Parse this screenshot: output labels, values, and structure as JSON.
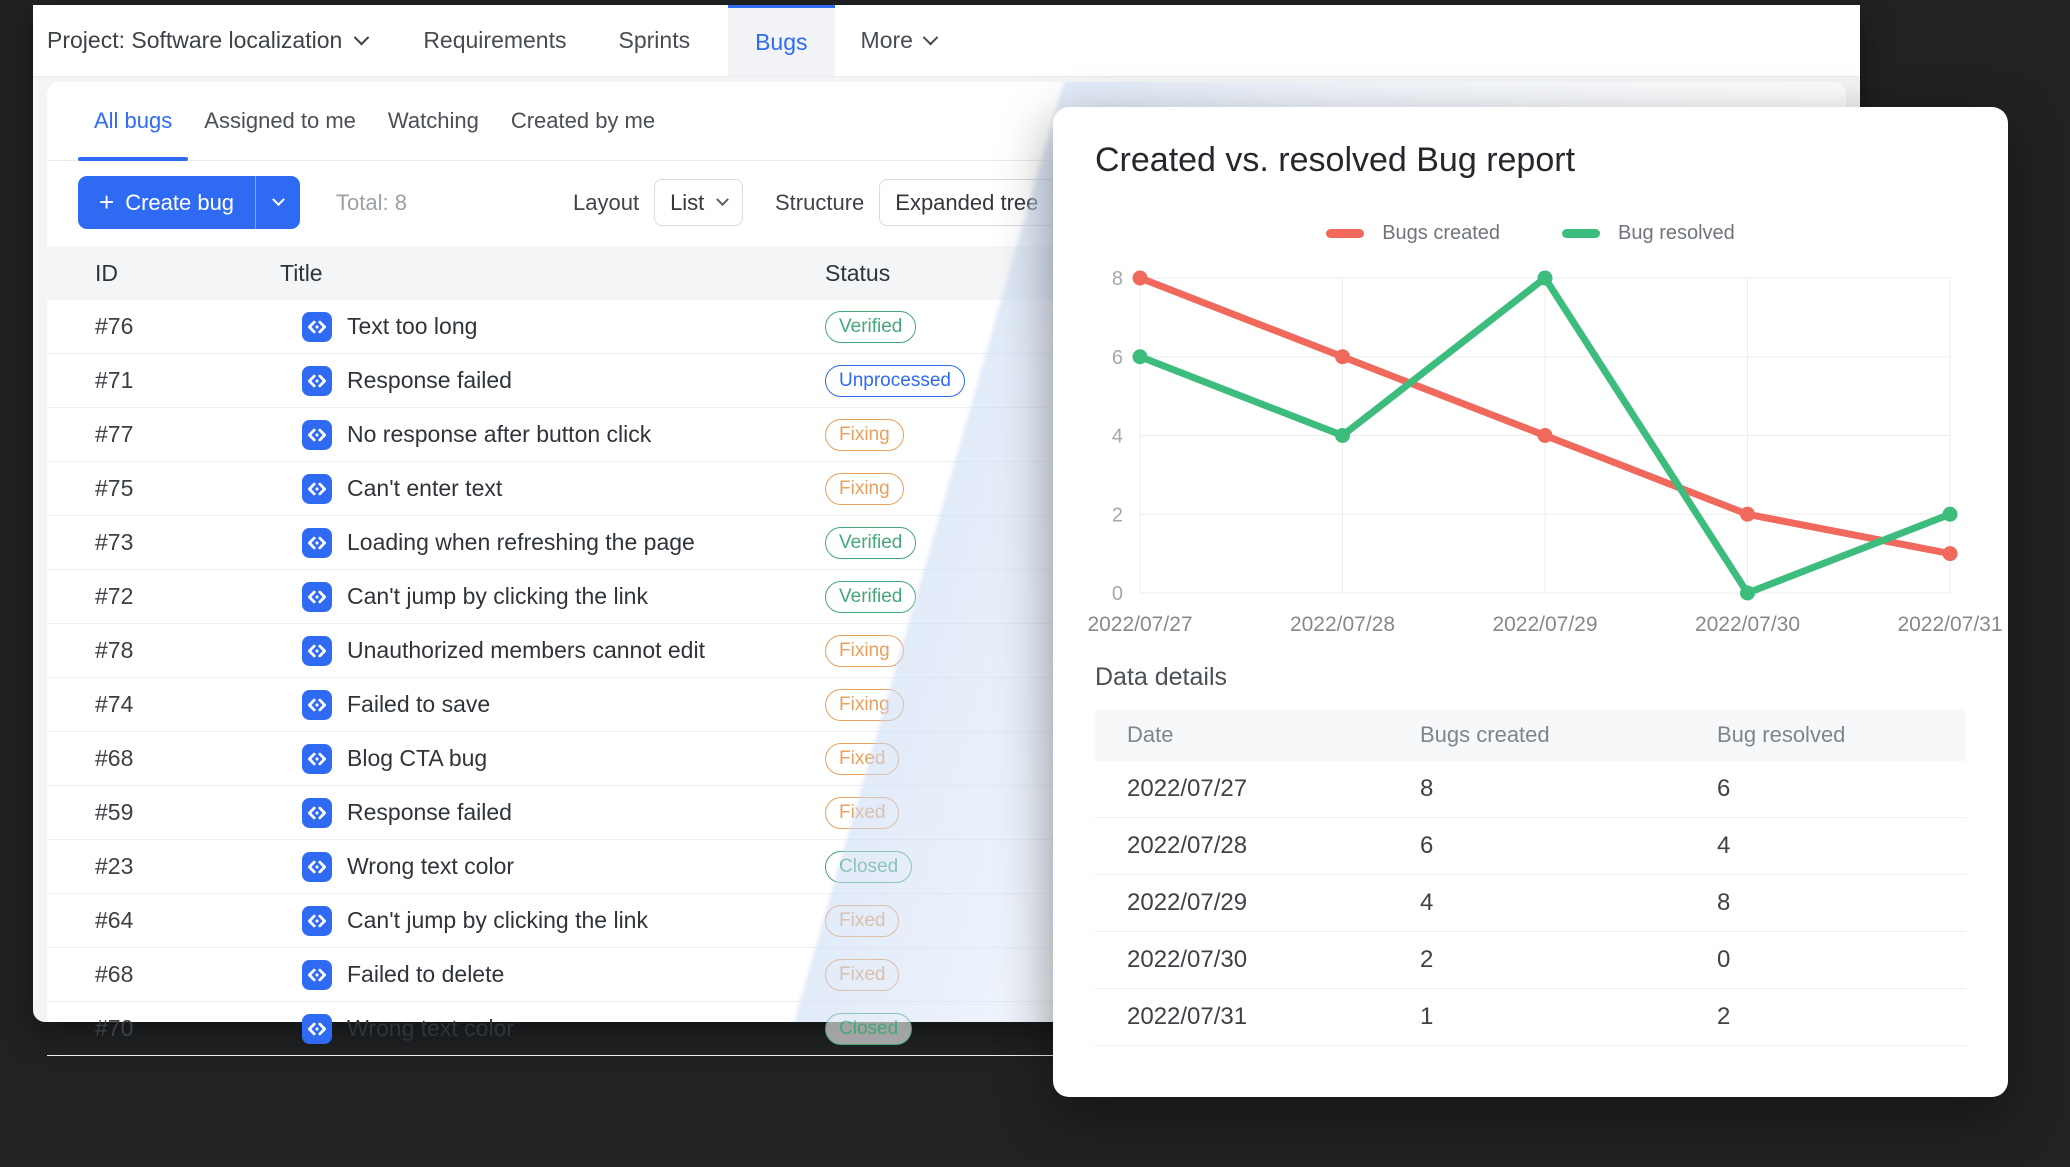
{
  "colors": {
    "accent_blue": "#2e6bf2",
    "line_red": "#f0695c",
    "line_green": "#3dbd7d",
    "pill_green": "#45a878",
    "pill_blue": "#2e6bf2",
    "pill_orange": "#e9a05c",
    "grid": "#ededee"
  },
  "top_nav": {
    "project_label": "Project: Software localization",
    "tabs": [
      {
        "label": "Requirements",
        "active": false
      },
      {
        "label": "Sprints",
        "active": false
      },
      {
        "label": "Bugs",
        "active": true
      }
    ],
    "more_label": "More"
  },
  "bugs_panel": {
    "tabs": [
      {
        "label": "All bugs",
        "active": true
      },
      {
        "label": "Assigned to me",
        "active": false
      },
      {
        "label": "Watching",
        "active": false
      },
      {
        "label": "Created by me",
        "active": false
      }
    ],
    "toolbar": {
      "create_button": "Create bug",
      "total_label": "Total: 8",
      "layout_label": "Layout",
      "layout_value": "List",
      "structure_label": "Structure",
      "structure_value": "Expanded tree"
    },
    "table": {
      "columns": [
        "ID",
        "Title",
        "Status"
      ],
      "rows": [
        {
          "id": "#76",
          "title": "Text too long",
          "status": "Verified",
          "tone": "green"
        },
        {
          "id": "#71",
          "title": "Response failed",
          "status": "Unprocessed",
          "tone": "blue"
        },
        {
          "id": "#77",
          "title": "No response after button click",
          "status": "Fixing",
          "tone": "orange"
        },
        {
          "id": "#75",
          "title": "Can't enter text",
          "status": "Fixing",
          "tone": "orange"
        },
        {
          "id": "#73",
          "title": "Loading when refreshing the page",
          "status": "Verified",
          "tone": "green"
        },
        {
          "id": "#72",
          "title": "Can't jump by clicking the link",
          "status": "Verified",
          "tone": "green"
        },
        {
          "id": "#78",
          "title": "Unauthorized members cannot edit",
          "status": "Fixing",
          "tone": "orange"
        },
        {
          "id": "#74",
          "title": "Failed to save",
          "status": "Fixing",
          "tone": "orange"
        },
        {
          "id": "#68",
          "title": "Blog CTA bug",
          "status": "Fixed",
          "tone": "orange"
        },
        {
          "id": "#59",
          "title": "Response failed",
          "status": "Fixed",
          "tone": "orange"
        },
        {
          "id": "#23",
          "title": "Wrong text color",
          "status": "Closed",
          "tone": "green"
        },
        {
          "id": "#64",
          "title": "Can't jump by clicking the link",
          "status": "Fixed",
          "tone": "orange"
        },
        {
          "id": "#68",
          "title": "Failed to delete",
          "status": "Fixed",
          "tone": "orange"
        },
        {
          "id": "#70",
          "title": "Wrong text color",
          "status": "Closed",
          "tone": "green"
        }
      ]
    }
  },
  "report_card": {
    "title": "Created vs. resolved Bug report",
    "legend": [
      {
        "label": "Bugs created",
        "color": "#f0695c"
      },
      {
        "label": "Bug resolved",
        "color": "#3dbd7d"
      }
    ],
    "details": {
      "heading": "Data details",
      "columns": [
        "Date",
        "Bugs created",
        "Bug resolved"
      ],
      "rows": [
        [
          "2022/07/27",
          "8",
          "6"
        ],
        [
          "2022/07/28",
          "6",
          "4"
        ],
        [
          "2022/07/29",
          "4",
          "8"
        ],
        [
          "2022/07/30",
          "2",
          "0"
        ],
        [
          "2022/07/31",
          "1",
          "2"
        ]
      ]
    }
  },
  "chart_data": {
    "type": "line",
    "title": "Created vs. resolved Bug report",
    "x": [
      "2022/07/27",
      "2022/07/28",
      "2022/07/29",
      "2022/07/30",
      "2022/07/31"
    ],
    "series": [
      {
        "name": "Bugs created",
        "color": "#f0695c",
        "values": [
          8,
          6,
          4,
          2,
          1
        ]
      },
      {
        "name": "Bug resolved",
        "color": "#3dbd7d",
        "values": [
          6,
          4,
          8,
          0,
          2
        ]
      }
    ],
    "ylim": [
      0,
      8
    ],
    "yticks": [
      0,
      2,
      4,
      6,
      8
    ],
    "grid": true,
    "grid_color": "#ededee",
    "legend_position": "top"
  }
}
